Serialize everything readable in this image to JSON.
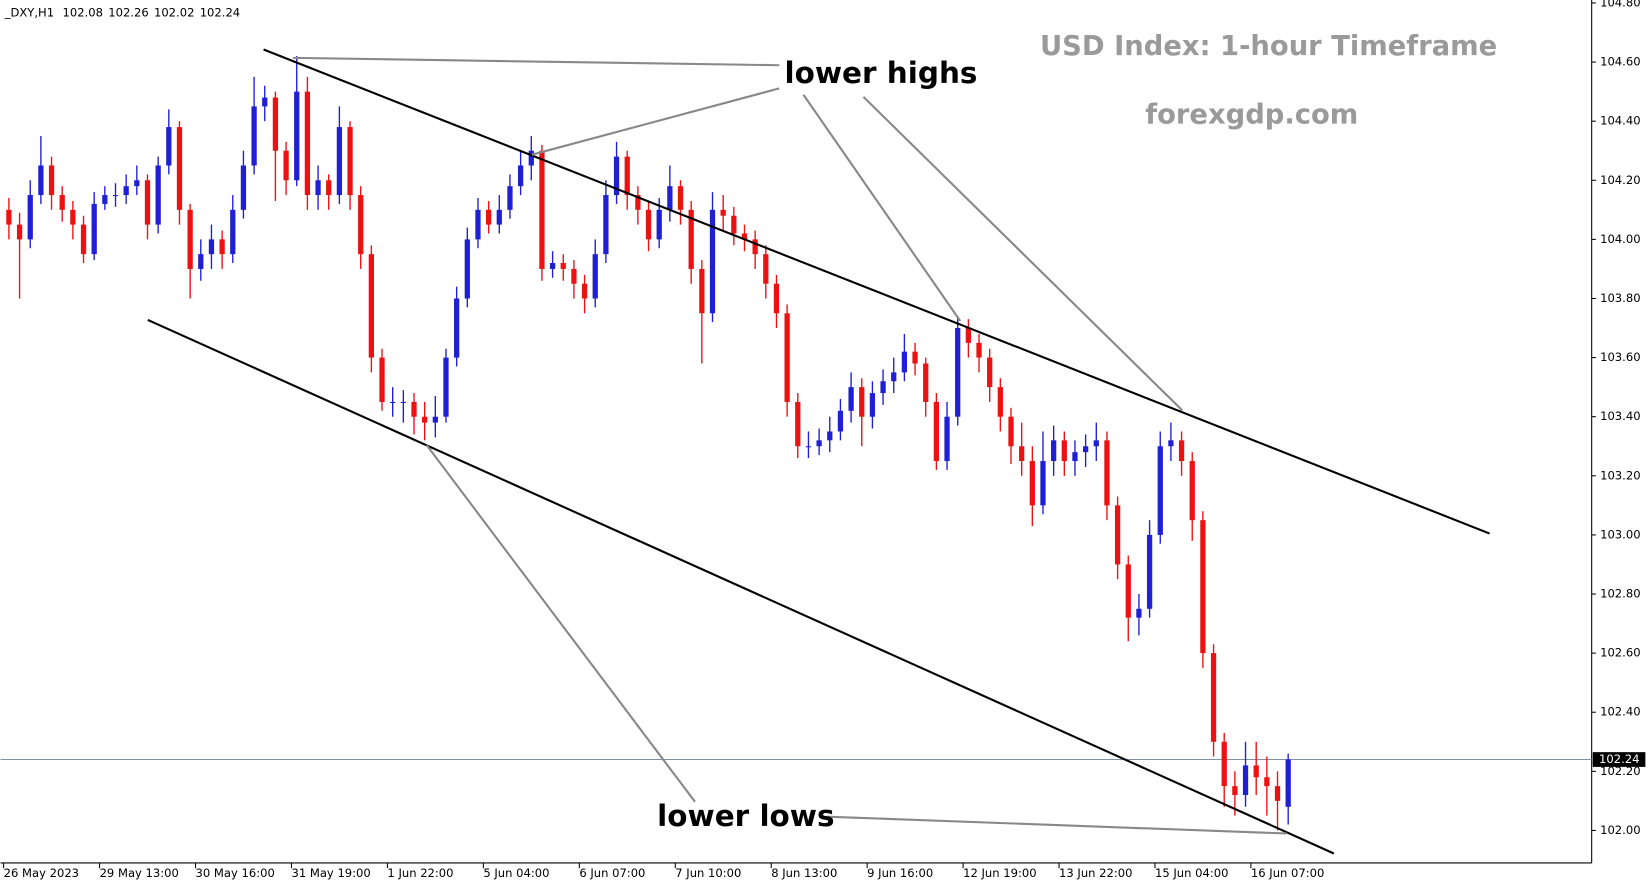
{
  "chart_data": {
    "type": "candlestick",
    "title": "USD Index: 1-hour Timeframe",
    "subtitle": "forexgdp.com",
    "symbol": "_DXY,H1",
    "header_ohlc": [
      102.08,
      102.26,
      102.02,
      102.24
    ],
    "annotations": [
      "lower highs",
      "lower lows"
    ],
    "last_price": 102.24,
    "up_color": "#1f1fd6",
    "down_color": "#ee1111",
    "ylim": [
      101.89,
      104.81
    ],
    "yticks": [
      {
        "value": 102,
        "label": "102.00"
      },
      {
        "value": 102.2,
        "label": "102.20"
      },
      {
        "value": 102.4,
        "label": "102.40"
      },
      {
        "value": 102.6,
        "label": "102.60"
      },
      {
        "value": 102.8,
        "label": "102.80"
      },
      {
        "value": 103,
        "label": "103.00"
      },
      {
        "value": 103.2,
        "label": "103.20"
      },
      {
        "value": 103.4,
        "label": "103.40"
      },
      {
        "value": 103.6,
        "label": "103.60"
      },
      {
        "value": 103.8,
        "label": "103.80"
      },
      {
        "value": 104,
        "label": "104.00"
      },
      {
        "value": 104.2,
        "label": "104.20"
      },
      {
        "value": 104.4,
        "label": "104.40"
      },
      {
        "value": 104.6,
        "label": "104.60"
      },
      {
        "value": 104.8,
        "label": "104.80"
      }
    ],
    "xticks": [
      {
        "value": 0,
        "label": "26 May 2023"
      },
      {
        "value": 9,
        "label": "29 May 13:00"
      },
      {
        "value": 18,
        "label": "30 May 16:00"
      },
      {
        "value": 27,
        "label": "31 May 19:00"
      },
      {
        "value": 36,
        "label": "1 Jun 22:00"
      },
      {
        "value": 45,
        "label": "5 Jun 04:00"
      },
      {
        "value": 54,
        "label": "6 Jun 07:00"
      },
      {
        "value": 63,
        "label": "7 Jun 10:00"
      },
      {
        "value": 72,
        "label": "8 Jun 13:00"
      },
      {
        "value": 81,
        "label": "9 Jun 16:00"
      },
      {
        "value": 90,
        "label": "12 Jun 19:00"
      },
      {
        "value": 99,
        "label": "13 Jun 22:00"
      },
      {
        "value": 108,
        "label": "15 Jun 04:00"
      },
      {
        "value": 117,
        "label": "16 Jun 07:00"
      }
    ],
    "open": [
      104.1,
      104.05,
      104.0,
      104.15,
      104.25,
      104.15,
      104.1,
      104.05,
      103.95,
      104.12,
      104.15,
      104.15,
      104.18,
      104.2,
      104.05,
      104.25,
      104.38,
      104.1,
      103.9,
      103.95,
      104.0,
      103.95,
      104.1,
      104.25,
      104.45,
      104.48,
      104.3,
      104.2,
      104.5,
      104.15,
      104.2,
      104.15,
      104.38,
      104.15,
      103.95,
      103.6,
      103.45,
      103.45,
      103.45,
      103.4,
      103.38,
      103.4,
      103.6,
      103.8,
      104.0,
      104.1,
      104.05,
      104.1,
      104.18,
      104.25,
      104.3,
      103.9,
      103.92,
      103.9,
      103.85,
      103.8,
      103.95,
      104.15,
      104.28,
      104.15,
      104.1,
      104.0,
      104.1,
      104.18,
      104.1,
      103.9,
      103.75,
      104.1,
      104.08,
      104.02,
      104.0,
      103.95,
      103.85,
      103.75,
      103.45,
      103.3,
      103.3,
      103.32,
      103.35,
      103.42,
      103.5,
      103.4,
      103.48,
      103.52,
      103.55,
      103.62,
      103.58,
      103.45,
      103.25,
      103.4,
      103.7,
      103.65,
      103.6,
      103.5,
      103.4,
      103.3,
      103.25,
      103.1,
      103.25,
      103.32,
      103.25,
      103.28,
      103.3,
      103.32,
      103.1,
      102.9,
      102.72,
      102.75,
      103.0,
      103.3,
      103.32,
      103.25,
      103.05,
      102.6,
      102.3,
      102.15,
      102.12,
      102.22,
      102.18,
      102.15,
      102.08
    ],
    "high": [
      104.14,
      104.09,
      104.2,
      104.35,
      104.28,
      104.18,
      104.13,
      104.08,
      104.16,
      104.18,
      104.19,
      104.22,
      104.25,
      104.22,
      104.28,
      104.44,
      104.4,
      104.12,
      104.0,
      104.05,
      104.03,
      104.15,
      104.3,
      104.55,
      104.52,
      104.5,
      104.33,
      104.62,
      104.55,
      104.25,
      104.22,
      104.45,
      104.4,
      104.18,
      103.98,
      103.63,
      103.5,
      103.49,
      103.48,
      103.45,
      103.47,
      103.63,
      103.84,
      104.04,
      104.14,
      104.13,
      104.15,
      104.22,
      104.3,
      104.35,
      104.32,
      103.96,
      103.95,
      103.93,
      103.88,
      104.0,
      104.2,
      104.33,
      104.3,
      104.18,
      104.13,
      104.14,
      104.25,
      104.2,
      104.13,
      103.93,
      104.16,
      104.15,
      104.11,
      104.05,
      104.03,
      103.98,
      103.88,
      103.78,
      103.48,
      103.35,
      103.36,
      103.4,
      103.46,
      103.55,
      103.53,
      103.52,
      103.56,
      103.6,
      103.68,
      103.65,
      103.6,
      103.48,
      103.45,
      103.74,
      103.73,
      103.68,
      103.63,
      103.53,
      103.43,
      103.38,
      103.3,
      103.35,
      103.37,
      103.35,
      103.32,
      103.34,
      103.38,
      103.35,
      103.13,
      102.93,
      102.8,
      103.05,
      103.35,
      103.38,
      103.35,
      103.28,
      103.08,
      102.63,
      102.33,
      102.2,
      102.3,
      102.3,
      102.25,
      102.2,
      102.26
    ],
    "low": [
      104.0,
      103.8,
      103.97,
      104.12,
      104.1,
      104.06,
      104.0,
      103.92,
      103.93,
      104.1,
      104.11,
      104.12,
      104.15,
      104.0,
      104.02,
      104.22,
      104.05,
      103.8,
      103.86,
      103.9,
      103.9,
      103.92,
      104.07,
      104.22,
      104.4,
      104.13,
      104.15,
      104.18,
      104.1,
      104.1,
      104.1,
      104.12,
      104.1,
      103.9,
      103.55,
      103.42,
      103.4,
      103.38,
      103.34,
      103.32,
      103.33,
      103.38,
      103.57,
      103.77,
      103.97,
      104.02,
      104.02,
      104.07,
      104.15,
      104.2,
      103.86,
      103.87,
      103.86,
      103.8,
      103.75,
      103.77,
      103.92,
      104.12,
      104.1,
      104.05,
      103.96,
      103.97,
      104.06,
      104.05,
      103.85,
      103.58,
      103.72,
      104.03,
      103.98,
      103.96,
      103.9,
      103.8,
      103.7,
      103.4,
      103.26,
      103.26,
      103.27,
      103.28,
      103.32,
      103.38,
      103.3,
      103.36,
      103.44,
      103.48,
      103.52,
      103.54,
      103.4,
      103.22,
      103.22,
      103.37,
      103.6,
      103.55,
      103.45,
      103.35,
      103.24,
      103.2,
      103.03,
      103.07,
      103.2,
      103.2,
      103.2,
      103.23,
      103.25,
      103.05,
      102.85,
      102.64,
      102.66,
      102.72,
      102.97,
      103.25,
      103.2,
      102.98,
      102.55,
      102.25,
      102.08,
      102.05,
      102.08,
      102.12,
      102.05,
      102.0,
      102.02
    ],
    "close": [
      104.05,
      104.0,
      104.15,
      104.25,
      104.15,
      104.1,
      104.05,
      103.95,
      104.12,
      104.15,
      104.15,
      104.18,
      104.2,
      104.05,
      104.25,
      104.38,
      104.1,
      103.9,
      103.95,
      104.0,
      103.95,
      104.1,
      104.25,
      104.45,
      104.48,
      104.3,
      104.2,
      104.5,
      104.15,
      104.2,
      104.15,
      104.38,
      104.15,
      103.95,
      103.6,
      103.45,
      103.45,
      103.45,
      103.4,
      103.38,
      103.4,
      103.6,
      103.8,
      104.0,
      104.1,
      104.05,
      104.1,
      104.18,
      104.25,
      104.3,
      103.9,
      103.92,
      103.9,
      103.85,
      103.8,
      103.95,
      104.15,
      104.28,
      104.15,
      104.1,
      104.0,
      104.1,
      104.18,
      104.1,
      103.9,
      103.75,
      104.1,
      104.08,
      104.02,
      104.0,
      103.95,
      103.85,
      103.75,
      103.45,
      103.3,
      103.3,
      103.32,
      103.35,
      103.42,
      103.5,
      103.4,
      103.48,
      103.52,
      103.55,
      103.62,
      103.58,
      103.45,
      103.25,
      103.4,
      103.7,
      103.65,
      103.6,
      103.5,
      103.4,
      103.3,
      103.25,
      103.1,
      103.25,
      103.32,
      103.25,
      103.28,
      103.3,
      103.32,
      103.1,
      102.9,
      102.72,
      102.75,
      103.0,
      103.3,
      103.32,
      103.25,
      103.05,
      102.6,
      102.3,
      102.15,
      102.12,
      102.22,
      102.18,
      102.15,
      102.1,
      102.24
    ]
  }
}
